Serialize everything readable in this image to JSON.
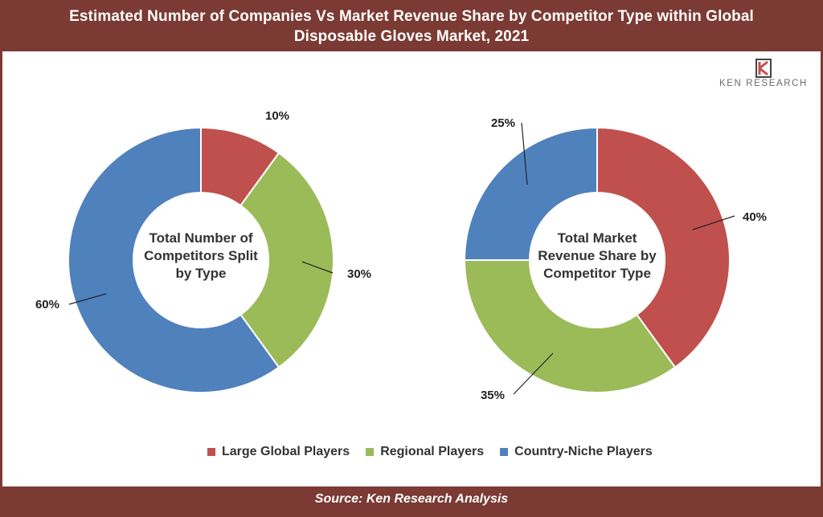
{
  "header": {
    "title_line1": "Estimated Number of Companies Vs Market Revenue Share by Competitor Type within Global",
    "title_line2": "Disposable Gloves Market, 2021"
  },
  "logo": {
    "text": "KEN RESEARCH",
    "icon": "ken-research-logo-icon"
  },
  "footer": {
    "source": "Source: Ken Research Analysis"
  },
  "colors": {
    "frame": "#7b3a33",
    "large": "#c0504d",
    "regional": "#9bbb59",
    "niche": "#4f81bd"
  },
  "chart_data": [
    {
      "type": "pie",
      "donut": true,
      "center_label": [
        "Total Number of",
        "Competitors Split",
        "by Type"
      ],
      "categories": [
        "Large Global Players",
        "Regional Players",
        "Country-Niche Players"
      ],
      "values": [
        10,
        30,
        60
      ],
      "labels": [
        "10%",
        "30%",
        "60%"
      ]
    },
    {
      "type": "pie",
      "donut": true,
      "center_label": [
        "Total Market",
        "Revenue Share by",
        "Competitor Type"
      ],
      "categories": [
        "Large Global Players",
        "Regional Players",
        "Country-Niche Players"
      ],
      "values": [
        40,
        35,
        25
      ],
      "labels": [
        "40%",
        "35%",
        "25%"
      ]
    }
  ],
  "legend": [
    "Large Global Players",
    "Regional Players",
    "Country-Niche Players"
  ]
}
